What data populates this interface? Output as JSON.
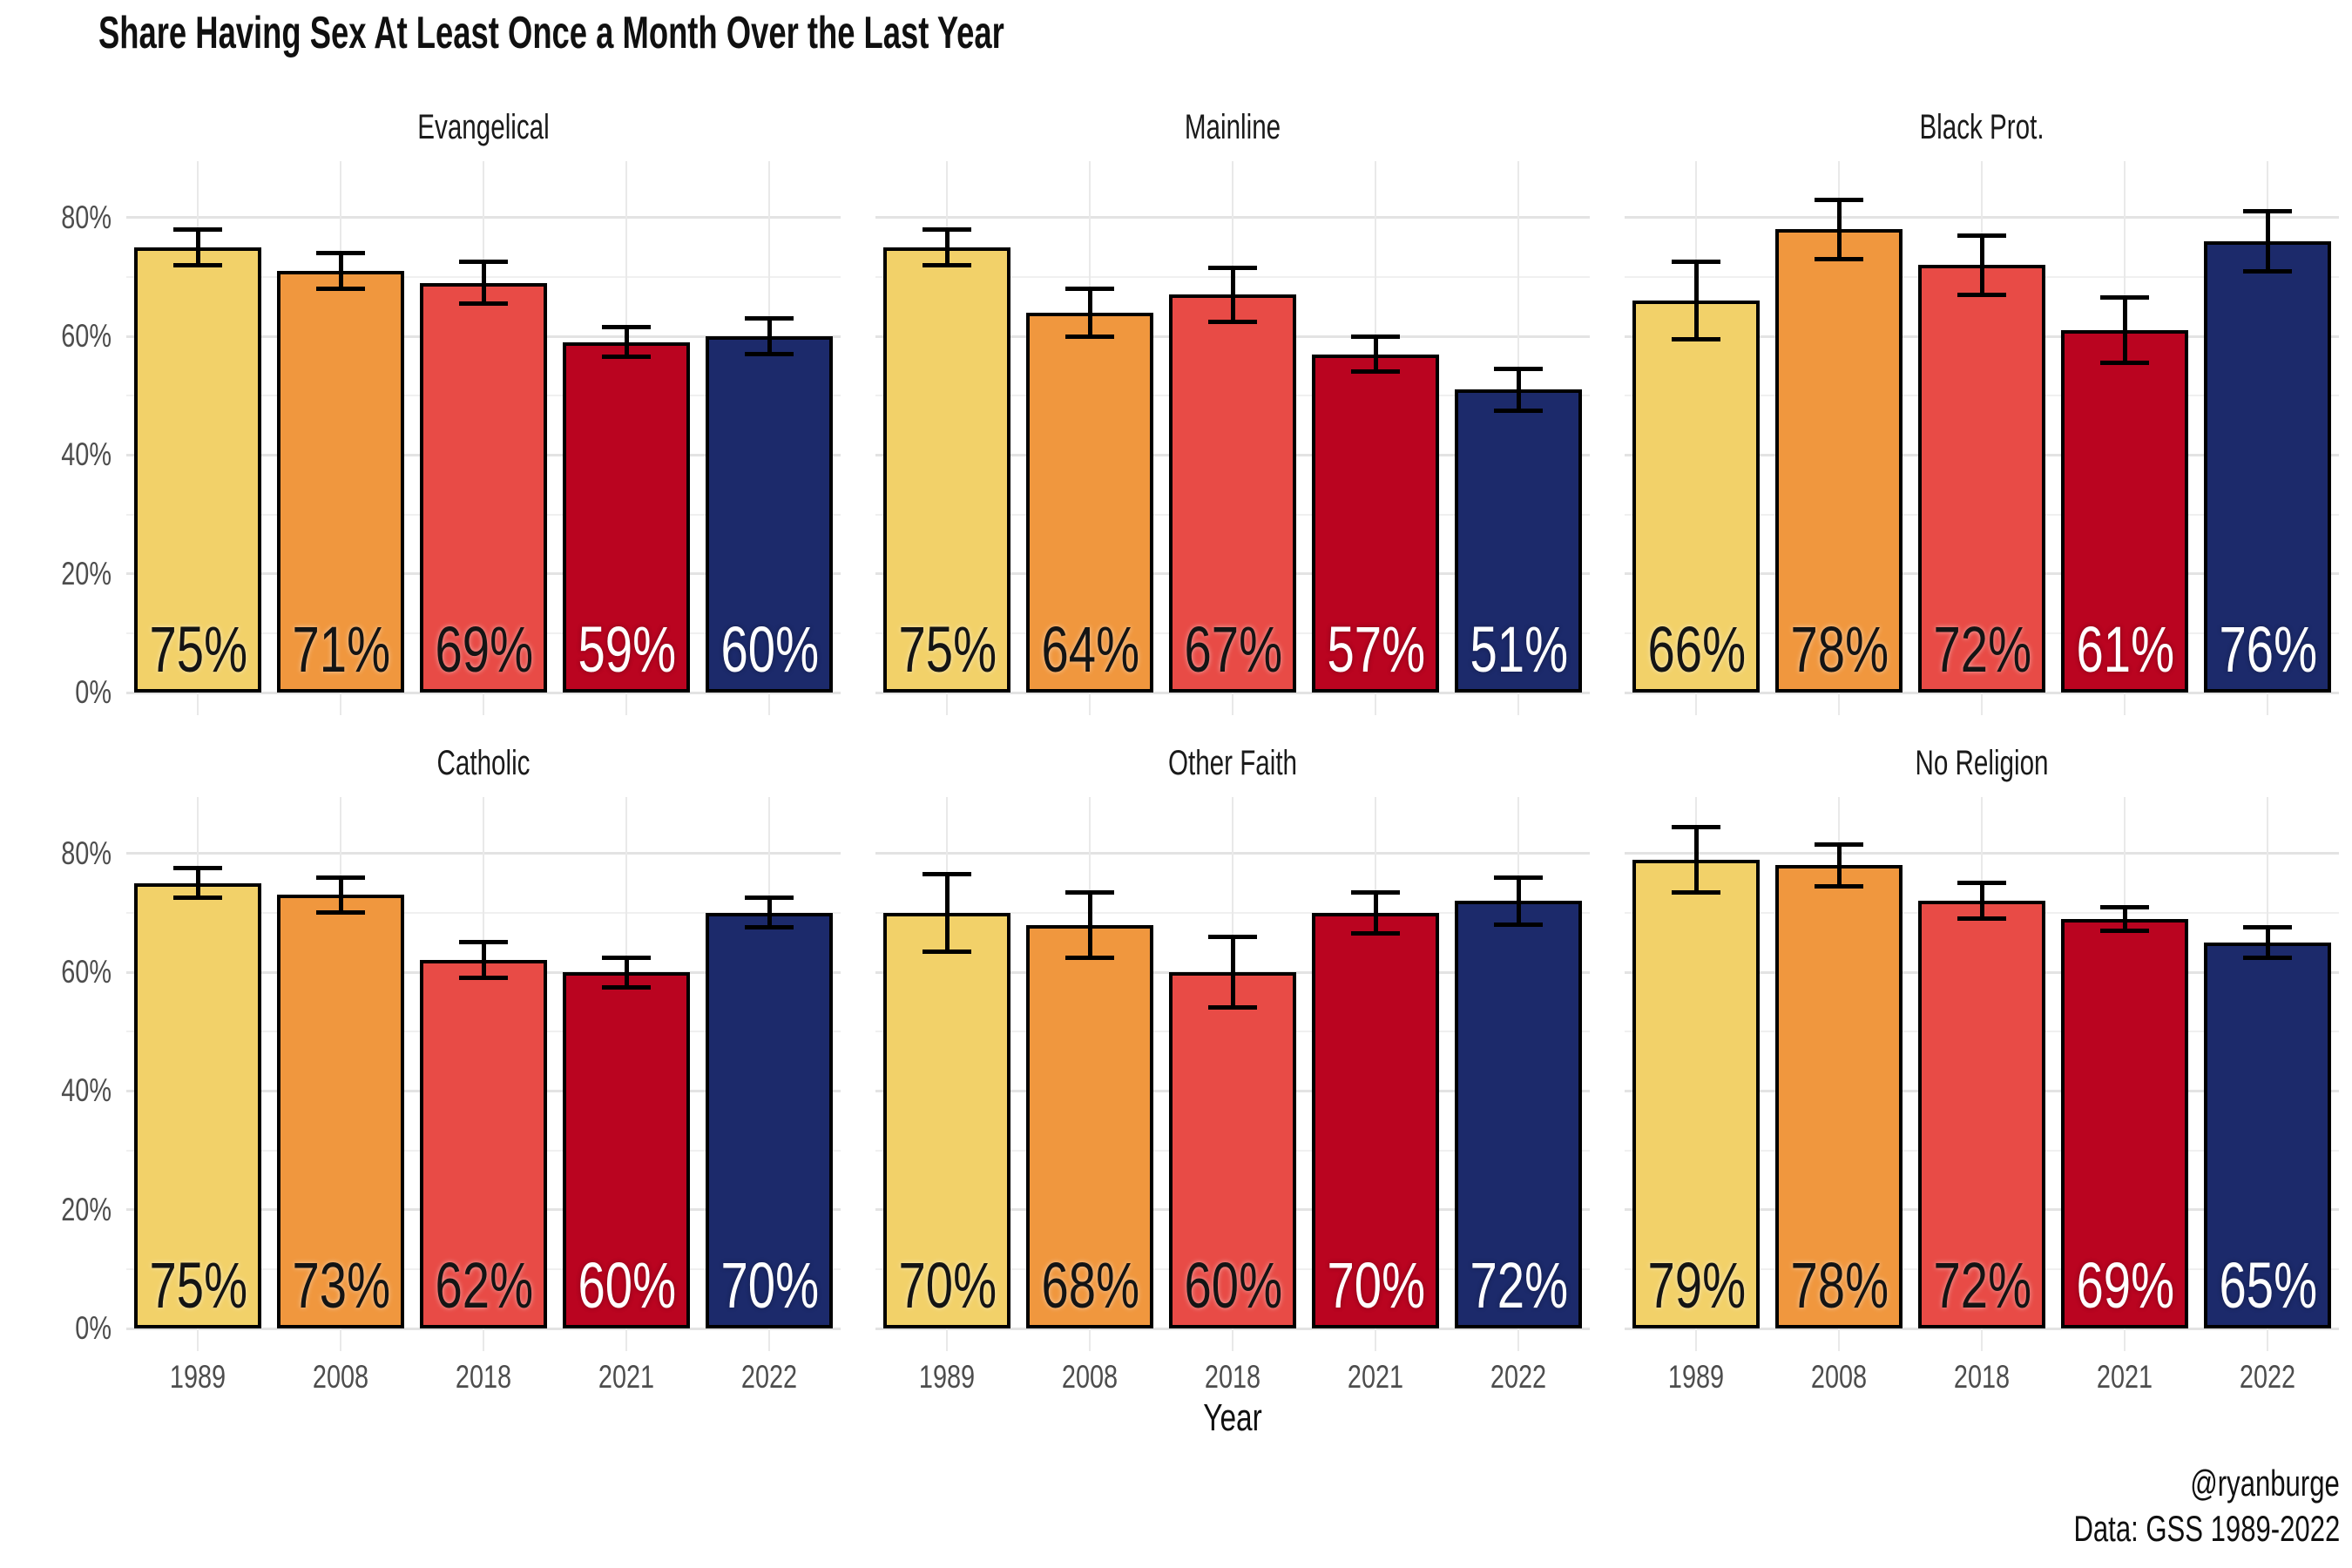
{
  "page": {
    "credit_handle": "@ryanburge",
    "credit_source": "Data: GSS 1989-2022"
  },
  "chart_data": {
    "type": "bar",
    "title": "Share Having Sex At Least Once a Month Over the Last Year",
    "subtitle": "",
    "xlabel": "Year",
    "ylabel": "",
    "layout": "facet-grid 2 rows x 3 columns, shared axes, no legend",
    "grid": "horizontal major every 20% + minor every 10%, vertical line at each bar, light gray on white",
    "ylim": [
      0,
      89.5
    ],
    "y_major": [
      0,
      20,
      40,
      60,
      80
    ],
    "y_minor": [
      10,
      30,
      50,
      70
    ],
    "ytick_labels": [
      "0%",
      "20%",
      "40%",
      "60%",
      "80%"
    ],
    "categories": [
      "1989",
      "2008",
      "2018",
      "2021",
      "2022"
    ],
    "value_suffix": "%",
    "series_colors": [
      "#F2D169",
      "#F0973E",
      "#E84B46",
      "#BA0420",
      "#1C2A6B"
    ],
    "label_colors": [
      "#141414",
      "#141414",
      "#141414",
      "#ffffff",
      "#ffffff"
    ],
    "bar_border_color": "#000000",
    "error_bar_color": "#000000",
    "facets": [
      {
        "name": "Evangelical",
        "values": [
          75,
          71,
          69,
          59,
          60
        ],
        "errors": [
          3,
          3,
          3.5,
          2.5,
          3
        ]
      },
      {
        "name": "Mainline",
        "values": [
          75,
          64,
          67,
          57,
          51
        ],
        "errors": [
          3,
          4,
          4.5,
          3,
          3.5
        ]
      },
      {
        "name": "Black Prot.",
        "values": [
          66,
          78,
          72,
          61,
          76
        ],
        "errors": [
          6.5,
          5,
          5,
          5.5,
          5
        ]
      },
      {
        "name": "Catholic",
        "values": [
          75,
          73,
          62,
          60,
          70
        ],
        "errors": [
          2.5,
          3,
          3,
          2.5,
          2.5
        ]
      },
      {
        "name": "Other Faith",
        "values": [
          70,
          68,
          60,
          70,
          72
        ],
        "errors": [
          6.5,
          5.5,
          6,
          3.5,
          4
        ]
      },
      {
        "name": "No Religion",
        "values": [
          79,
          78,
          72,
          69,
          65
        ],
        "errors": [
          5.5,
          3.5,
          3,
          2,
          2.5
        ]
      }
    ]
  }
}
